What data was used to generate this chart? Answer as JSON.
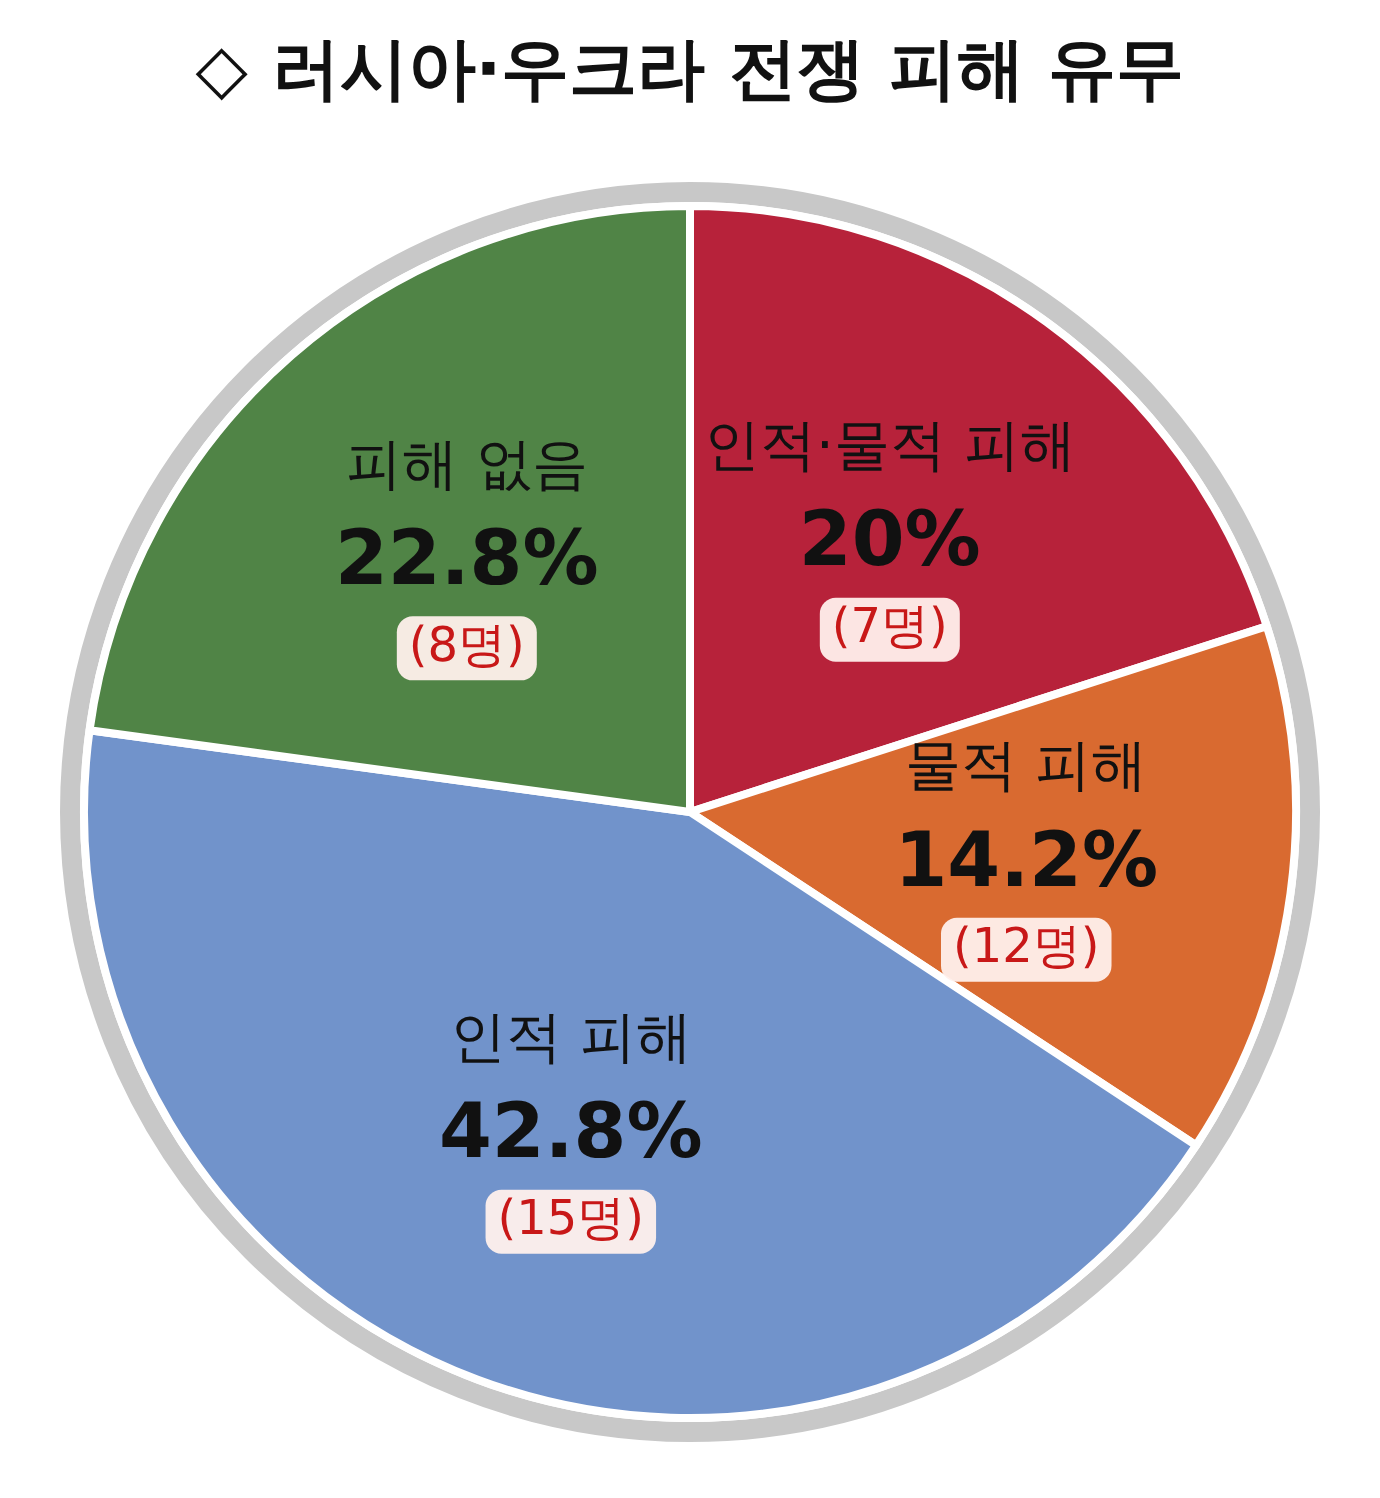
{
  "chart_data": {
    "type": "pie",
    "title": "◇ 러시아·우크라 전쟁 피해 유무",
    "categories": [
      "인적·물적 피해",
      "물적 피해",
      "인적 피해",
      "피해 없음"
    ],
    "values": [
      20,
      14.2,
      42.8,
      22.8
    ],
    "colors": [
      "#b7223a",
      "#d96a30",
      "#7193cb",
      "#508446"
    ],
    "value_labels": [
      "20%",
      "14.2%",
      "42.8%",
      "22.8%"
    ],
    "annotations": [
      {
        "text": "(7명)",
        "x": "인적·물적 피해"
      },
      {
        "text": "(12명)",
        "x": "물적 피해"
      },
      {
        "text": "(15명)",
        "x": "인적 피해"
      },
      {
        "text": "(8명)",
        "x": "피해 없음"
      }
    ],
    "legend": false
  }
}
